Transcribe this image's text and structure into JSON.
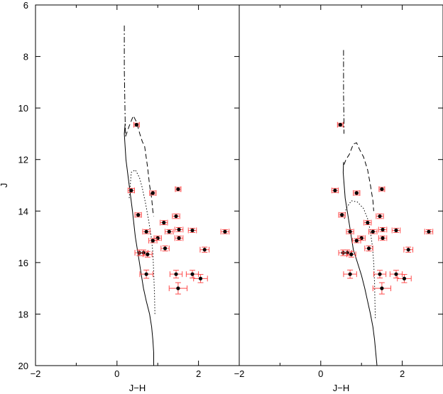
{
  "chart_data": [
    {
      "type": "scatter",
      "panel": "left",
      "xlabel": "J−H",
      "ylabel": "J",
      "xlim": [
        -2,
        3
      ],
      "ylim": [
        20,
        6
      ],
      "y_inverted": true,
      "xticks": [
        -2,
        0,
        2
      ],
      "xtick_labels": [
        "−2",
        "0",
        "2"
      ],
      "yticks": [
        6,
        8,
        10,
        12,
        14,
        16,
        18,
        20
      ],
      "ytick_labels": [
        "6",
        "8",
        "10",
        "12",
        "14",
        "16",
        "18",
        "20"
      ],
      "grid": false,
      "colors": {
        "points": "#000000",
        "error_bars": "#ff4a4a",
        "curves": "#000000"
      },
      "points": [
        {
          "x": 0.48,
          "y": 10.65,
          "xerr": 0.07,
          "yerr": 0.06
        },
        {
          "x": 0.35,
          "y": 13.2,
          "xerr": 0.08,
          "yerr": 0.08
        },
        {
          "x": 0.88,
          "y": 13.3,
          "xerr": 0.08,
          "yerr": 0.08
        },
        {
          "x": 1.5,
          "y": 13.15,
          "xerr": 0.07,
          "yerr": 0.07
        },
        {
          "x": 0.52,
          "y": 14.15,
          "xerr": 0.08,
          "yerr": 0.08
        },
        {
          "x": 1.45,
          "y": 14.2,
          "xerr": 0.09,
          "yerr": 0.09
        },
        {
          "x": 1.15,
          "y": 14.45,
          "xerr": 0.09,
          "yerr": 0.08
        },
        {
          "x": 0.72,
          "y": 14.8,
          "xerr": 0.09,
          "yerr": 0.08
        },
        {
          "x": 1.28,
          "y": 14.8,
          "xerr": 0.1,
          "yerr": 0.08
        },
        {
          "x": 1.52,
          "y": 14.72,
          "xerr": 0.1,
          "yerr": 0.08
        },
        {
          "x": 1.85,
          "y": 14.75,
          "xerr": 0.1,
          "yerr": 0.08
        },
        {
          "x": 2.65,
          "y": 14.8,
          "xerr": 0.1,
          "yerr": 0.08
        },
        {
          "x": 1.0,
          "y": 15.05,
          "xerr": 0.09,
          "yerr": 0.08
        },
        {
          "x": 1.52,
          "y": 15.05,
          "xerr": 0.1,
          "yerr": 0.08
        },
        {
          "x": 0.88,
          "y": 15.15,
          "xerr": 0.1,
          "yerr": 0.08
        },
        {
          "x": 1.18,
          "y": 15.45,
          "xerr": 0.1,
          "yerr": 0.1
        },
        {
          "x": 2.15,
          "y": 15.5,
          "xerr": 0.11,
          "yerr": 0.1
        },
        {
          "x": 0.55,
          "y": 15.62,
          "xerr": 0.11,
          "yerr": 0.11
        },
        {
          "x": 0.65,
          "y": 15.62,
          "xerr": 0.11,
          "yerr": 0.11
        },
        {
          "x": 0.75,
          "y": 15.68,
          "xerr": 0.11,
          "yerr": 0.11
        },
        {
          "x": 0.72,
          "y": 16.45,
          "xerr": 0.16,
          "yerr": 0.16
        },
        {
          "x": 1.45,
          "y": 16.45,
          "xerr": 0.15,
          "yerr": 0.15
        },
        {
          "x": 1.85,
          "y": 16.45,
          "xerr": 0.15,
          "yerr": 0.15
        },
        {
          "x": 2.05,
          "y": 16.62,
          "xerr": 0.17,
          "yerr": 0.16
        },
        {
          "x": 1.5,
          "y": 17.0,
          "xerr": 0.22,
          "yerr": 0.22
        }
      ],
      "curves": [
        {
          "style": "solid",
          "x": [
            0.2,
            0.18,
            0.22,
            0.3,
            0.38,
            0.45,
            0.5,
            0.55,
            0.6,
            0.65,
            0.72,
            0.8,
            0.85,
            0.88,
            0.9,
            0.9,
            0.92
          ],
          "y": [
            10.6,
            11.0,
            12.0,
            13.0,
            14.0,
            15.0,
            15.5,
            16.0,
            16.5,
            17.0,
            17.5,
            18.0,
            18.5,
            19.0,
            19.5,
            20.0,
            20.0
          ]
        },
        {
          "style": "dashdot",
          "x": [
            0.18,
            0.18,
            0.18,
            0.19,
            0.2,
            0.21
          ],
          "y": [
            6.8,
            7.5,
            8.5,
            9.5,
            10.5,
            11.1
          ]
        },
        {
          "style": "dashed",
          "x": [
            0.21,
            0.3,
            0.4,
            0.48,
            0.56,
            0.62,
            0.68,
            0.75,
            0.8,
            0.85,
            0.88,
            0.9
          ],
          "y": [
            11.1,
            10.7,
            10.3,
            10.55,
            11.0,
            11.3,
            11.5,
            12.3,
            13.0,
            13.5,
            14.0,
            14.2
          ]
        },
        {
          "style": "dotted",
          "x": [
            0.3,
            0.35,
            0.45,
            0.55,
            0.62,
            0.7,
            0.78,
            0.84,
            0.88,
            0.9,
            0.92,
            0.93
          ],
          "y": [
            13.5,
            12.5,
            12.4,
            12.7,
            13.1,
            13.7,
            14.4,
            15.0,
            15.6,
            16.4,
            17.2,
            18.0
          ]
        }
      ]
    },
    {
      "type": "scatter",
      "panel": "right",
      "xlabel": "J−H",
      "xlim": [
        -2,
        3
      ],
      "ylim": [
        20,
        6
      ],
      "y_inverted": true,
      "xticks": [
        -2,
        0,
        2
      ],
      "xtick_labels": [
        "−2",
        "0",
        "2"
      ],
      "grid": false,
      "colors": {
        "points": "#000000",
        "error_bars": "#ff4a4a",
        "curves": "#000000"
      },
      "points": [
        {
          "x": 0.48,
          "y": 10.65,
          "xerr": 0.07,
          "yerr": 0.06
        },
        {
          "x": 0.35,
          "y": 13.2,
          "xerr": 0.08,
          "yerr": 0.08
        },
        {
          "x": 0.88,
          "y": 13.3,
          "xerr": 0.08,
          "yerr": 0.08
        },
        {
          "x": 1.5,
          "y": 13.15,
          "xerr": 0.07,
          "yerr": 0.07
        },
        {
          "x": 0.52,
          "y": 14.15,
          "xerr": 0.08,
          "yerr": 0.08
        },
        {
          "x": 1.45,
          "y": 14.2,
          "xerr": 0.09,
          "yerr": 0.09
        },
        {
          "x": 1.15,
          "y": 14.45,
          "xerr": 0.09,
          "yerr": 0.08
        },
        {
          "x": 0.72,
          "y": 14.8,
          "xerr": 0.09,
          "yerr": 0.08
        },
        {
          "x": 1.28,
          "y": 14.8,
          "xerr": 0.1,
          "yerr": 0.08
        },
        {
          "x": 1.52,
          "y": 14.72,
          "xerr": 0.1,
          "yerr": 0.08
        },
        {
          "x": 1.85,
          "y": 14.75,
          "xerr": 0.1,
          "yerr": 0.08
        },
        {
          "x": 2.65,
          "y": 14.8,
          "xerr": 0.1,
          "yerr": 0.08
        },
        {
          "x": 1.0,
          "y": 15.05,
          "xerr": 0.09,
          "yerr": 0.08
        },
        {
          "x": 1.52,
          "y": 15.05,
          "xerr": 0.1,
          "yerr": 0.08
        },
        {
          "x": 0.88,
          "y": 15.15,
          "xerr": 0.1,
          "yerr": 0.08
        },
        {
          "x": 1.18,
          "y": 15.45,
          "xerr": 0.1,
          "yerr": 0.1
        },
        {
          "x": 2.15,
          "y": 15.5,
          "xerr": 0.11,
          "yerr": 0.1
        },
        {
          "x": 0.55,
          "y": 15.62,
          "xerr": 0.11,
          "yerr": 0.11
        },
        {
          "x": 0.65,
          "y": 15.62,
          "xerr": 0.11,
          "yerr": 0.11
        },
        {
          "x": 0.75,
          "y": 15.68,
          "xerr": 0.11,
          "yerr": 0.11
        },
        {
          "x": 0.72,
          "y": 16.45,
          "xerr": 0.16,
          "yerr": 0.16
        },
        {
          "x": 1.45,
          "y": 16.45,
          "xerr": 0.15,
          "yerr": 0.15
        },
        {
          "x": 1.85,
          "y": 16.45,
          "xerr": 0.15,
          "yerr": 0.15
        },
        {
          "x": 2.05,
          "y": 16.62,
          "xerr": 0.17,
          "yerr": 0.16
        },
        {
          "x": 1.5,
          "y": 17.0,
          "xerr": 0.22,
          "yerr": 0.22
        }
      ],
      "curves": [
        {
          "style": "solid",
          "x": [
            0.56,
            0.55,
            0.6,
            0.7,
            0.8,
            0.9,
            1.0,
            1.08,
            1.15,
            1.22,
            1.28,
            1.32,
            1.35,
            1.38
          ],
          "y": [
            12.1,
            12.5,
            13.5,
            14.5,
            15.5,
            16.0,
            16.5,
            17.0,
            17.5,
            18.0,
            18.5,
            19.0,
            19.5,
            20.0
          ]
        },
        {
          "style": "dashdot",
          "x": [
            0.56,
            0.56,
            0.56,
            0.57,
            0.57
          ],
          "y": [
            7.75,
            8.5,
            9.5,
            10.5,
            11.0
          ]
        },
        {
          "style": "dashed",
          "x": [
            0.57,
            0.62,
            0.7,
            0.8,
            0.88,
            0.95,
            1.05,
            1.15,
            1.22,
            1.28,
            1.3
          ],
          "y": [
            12.2,
            12.0,
            11.8,
            11.4,
            11.35,
            11.6,
            11.9,
            12.4,
            13.0,
            13.6,
            14.0
          ]
        },
        {
          "style": "dotted",
          "x": [
            0.58,
            0.62,
            0.75,
            0.9,
            1.05,
            1.15,
            1.22,
            1.27,
            1.3,
            1.32,
            1.33,
            1.34
          ],
          "y": [
            14.3,
            13.9,
            13.6,
            13.65,
            13.9,
            14.3,
            14.8,
            15.4,
            16.0,
            16.8,
            17.5,
            18.2
          ]
        }
      ]
    }
  ]
}
